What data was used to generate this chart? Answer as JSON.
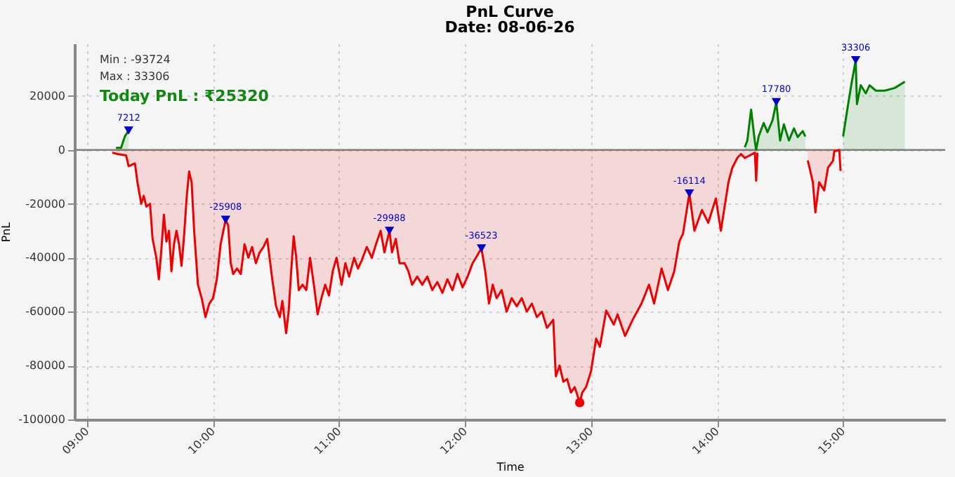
{
  "chart_data": {
    "type": "area",
    "title": "PnL Curve",
    "subtitle": "Date: 08-06-26",
    "xlabel": "Time",
    "ylabel": "PnL",
    "xlim": [
      8.9,
      15.81
    ],
    "ylim": [
      -100000,
      39500
    ],
    "xticks": [
      {
        "value": 9,
        "label": "09:00"
      },
      {
        "value": 10,
        "label": "10:00"
      },
      {
        "value": 11,
        "label": "11:00"
      },
      {
        "value": 12,
        "label": "12:00"
      },
      {
        "value": 13,
        "label": "13:00"
      },
      {
        "value": 14,
        "label": "14:00"
      },
      {
        "value": 15,
        "label": "15:00"
      }
    ],
    "yticks": [
      -100000,
      -80000,
      -60000,
      -40000,
      -20000,
      0,
      20000
    ],
    "grid": true,
    "line_style": "solid",
    "annotations": [
      "Min : -93724",
      "Max : 33306",
      "Today PnL : ₹25320"
    ],
    "ref_lines": [
      {
        "axis": "y",
        "value": 0,
        "label": null,
        "color": "#808080"
      }
    ],
    "series": [
      {
        "color": "#ee0000",
        "x": [
          9.2,
          9.24,
          9.31,
          9.33,
          9.38,
          9.4,
          9.43,
          9.45,
          9.47,
          9.5,
          9.52,
          9.55,
          9.57,
          9.59,
          9.61,
          9.63,
          9.65,
          9.67,
          9.69,
          9.71,
          9.73,
          9.75,
          9.77,
          9.79,
          9.81,
          9.83,
          9.85,
          9.88,
          9.91,
          9.94,
          9.97,
          10.0,
          10.03,
          10.06,
          10.1,
          10.12,
          10.14,
          10.16,
          10.19,
          10.22,
          10.25,
          10.28,
          10.31,
          10.34,
          10.37,
          10.4,
          10.43,
          10.47,
          10.5,
          10.53,
          10.55,
          10.58,
          10.6,
          10.62,
          10.64,
          10.66,
          10.68,
          10.71,
          10.74,
          10.77,
          10.8,
          10.83,
          10.86,
          10.89,
          10.92,
          10.95,
          10.98,
          11.02,
          11.05,
          11.08,
          11.12,
          11.15,
          11.18,
          11.22,
          11.26,
          11.3,
          11.33,
          11.36,
          11.4,
          11.42,
          11.45,
          11.48,
          11.52,
          11.55,
          11.58,
          11.62,
          11.66,
          11.7,
          11.74,
          11.78,
          11.82,
          11.86,
          11.9,
          11.94,
          11.98,
          12.02,
          12.06,
          12.13,
          12.16,
          12.19,
          12.22,
          12.25,
          12.29,
          12.33,
          12.37,
          12.41,
          12.45,
          12.49,
          12.53,
          12.57,
          12.61,
          12.65,
          12.7,
          12.72,
          12.75,
          12.78,
          12.81,
          12.84,
          12.87,
          12.91,
          12.93,
          12.96,
          13.0,
          13.04,
          13.07,
          13.12,
          13.18,
          13.21,
          13.27,
          13.33,
          13.4,
          13.46,
          13.5,
          13.56,
          13.61,
          13.66,
          13.7,
          13.73,
          13.78,
          13.82,
          13.88,
          13.93,
          13.99,
          14.03,
          14.09,
          14.12,
          14.16,
          14.19,
          14.22,
          14.3,
          14.31,
          14.32,
          14.34,
          14.72,
          14.76,
          14.78,
          14.81,
          14.85,
          14.88,
          14.92,
          14.93,
          14.97,
          14.98
        ],
        "values": [
          -1000,
          -1500,
          -2000,
          -6000,
          -5000,
          -12000,
          -20000,
          -17000,
          -21000,
          -20000,
          -33000,
          -40000,
          -48000,
          -37000,
          -24000,
          -34000,
          -30000,
          -45000,
          -35000,
          -30000,
          -35000,
          -43000,
          -32000,
          -18000,
          -8000,
          -12000,
          -30000,
          -50000,
          -55000,
          -62000,
          -57000,
          -55000,
          -48000,
          -35000,
          -25908,
          -28000,
          -42000,
          -46000,
          -44000,
          -46000,
          -35000,
          -40000,
          -36000,
          -42000,
          -38000,
          -36000,
          -33000,
          -48000,
          -58000,
          -62000,
          -56000,
          -68000,
          -60000,
          -45000,
          -32000,
          -40000,
          -52000,
          -50000,
          -52000,
          -40000,
          -50000,
          -61000,
          -55000,
          -50000,
          -54000,
          -45000,
          -40000,
          -50000,
          -42000,
          -47000,
          -40000,
          -44000,
          -41000,
          -36000,
          -40000,
          -34000,
          -30000,
          -38000,
          -29988,
          -38000,
          -33000,
          -42000,
          -42000,
          -45000,
          -50000,
          -47000,
          -50000,
          -47000,
          -52000,
          -49000,
          -53000,
          -48000,
          -52000,
          -46000,
          -51000,
          -47000,
          -42000,
          -36523,
          -45000,
          -57000,
          -50000,
          -55000,
          -52000,
          -60000,
          -55000,
          -58000,
          -55000,
          -60000,
          -57000,
          -62000,
          -60000,
          -66000,
          -63000,
          -84000,
          -80000,
          -86000,
          -85000,
          -90000,
          -88000,
          -93724,
          -90000,
          -88000,
          -82000,
          -70000,
          -73000,
          -59600,
          -64800,
          -61000,
          -69000,
          -63000,
          -57000,
          -50000,
          -57000,
          -44000,
          -52000,
          -45000,
          -34000,
          -31000,
          -16114,
          -30000,
          -22300,
          -27000,
          -18000,
          -30000,
          -12000,
          -6700,
          -3000,
          -1500,
          -3000,
          -1000,
          -11400,
          -1000,
          null,
          -3900,
          -12000,
          -23200,
          -12000,
          -15000,
          -6600,
          -4000,
          -500,
          0,
          -7800
        ]
      },
      {
        "color": "#008000",
        "x": [
          9.23,
          9.27,
          9.29,
          9.3,
          9.33,
          9.36,
          14.22,
          14.24,
          14.27,
          14.3,
          14.31,
          14.33,
          14.37,
          14.4,
          14.44,
          14.47,
          14.5,
          14.53,
          14.57,
          14.61,
          14.64,
          14.68,
          14.7,
          14.85,
          15.0,
          15.04,
          15.07,
          15.1,
          15.11,
          15.14,
          15.18,
          15.21,
          15.26,
          15.33,
          15.41,
          15.49
        ],
        "values": [
          800,
          800,
          3600,
          5000,
          7212,
          null,
          1000,
          3500,
          15000,
          3000,
          0,
          5000,
          10000,
          6600,
          11000,
          17780,
          3500,
          9500,
          3500,
          8000,
          4800,
          7000,
          5000,
          null,
          5000,
          17000,
          25500,
          33306,
          17000,
          24000,
          21000,
          24000,
          22000,
          22000,
          23000,
          25320
        ]
      },
      {
        "type": "scatter",
        "color": "#0000cc",
        "marker": "triangle",
        "x": [
          9.33,
          10.1,
          11.4,
          12.13,
          13.78,
          14.47,
          15.1
        ],
        "values": [
          7212,
          -25908,
          -29988,
          -36523,
          -16114,
          17780,
          33306
        ],
        "value_labels": [
          "7212",
          "-25908",
          "-29988",
          "-36523",
          "-16114",
          "17780",
          "33306"
        ]
      },
      {
        "type": "scatter",
        "color": "#ee0000",
        "marker": "circle",
        "x": [
          12.91
        ],
        "values": [
          -93724
        ]
      }
    ]
  }
}
